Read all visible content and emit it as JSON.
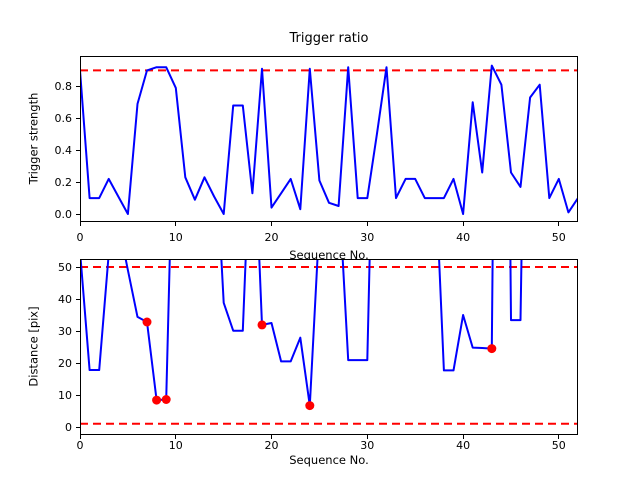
{
  "figure": {
    "background": "#ffffff",
    "line_color": "#0000ff",
    "threshold_color": "#ff0000",
    "marker_color": "#ff0000"
  },
  "chart_data": [
    {
      "type": "line",
      "title": "Trigger ratio",
      "xlabel": "Sequence No.",
      "ylabel": "Trigger strength",
      "x_note": "x = point index 0..52",
      "values": [
        0.9,
        0.1,
        0.1,
        0.22,
        0.11,
        0.0,
        0.69,
        0.9,
        0.92,
        0.92,
        0.79,
        0.23,
        0.09,
        0.23,
        0.11,
        0.0,
        0.68,
        0.68,
        0.13,
        0.91,
        0.04,
        0.13,
        0.22,
        0.03,
        0.91,
        0.21,
        0.07,
        0.05,
        0.92,
        0.1,
        0.1,
        0.5,
        0.92,
        0.1,
        0.22,
        0.22,
        0.1,
        0.1,
        0.1,
        0.22,
        0.0,
        0.7,
        0.26,
        0.93,
        0.81,
        0.26,
        0.17,
        0.73,
        0.81,
        0.1,
        0.22,
        0.01,
        0.1
      ],
      "thresholds": [
        0.9
      ],
      "markers": [],
      "xlim": [
        0,
        52
      ],
      "ylim": [
        -0.05,
        0.99
      ],
      "xticks": [
        0,
        10,
        20,
        30,
        40,
        50
      ],
      "xticklabels": [
        "0",
        "10",
        "20",
        "30",
        "40",
        "50"
      ],
      "yticks": [
        0.0,
        0.2,
        0.4,
        0.6,
        0.8
      ],
      "yticklabels": [
        "0.0",
        "0.2",
        "0.4",
        "0.6",
        "0.8"
      ],
      "grid": false,
      "legend": null
    },
    {
      "type": "line",
      "title": "",
      "xlabel": "Sequence No.",
      "ylabel": "Distance [pix]",
      "x_note": "x = point index 0..52",
      "clip_note": "values above ~52.5 run off the top of the axes; off-scale magnitudes are estimates from entry/exit slopes",
      "values": [
        55,
        17.8,
        17.8,
        54,
        64,
        49,
        34.4,
        32.8,
        8.4,
        8.6,
        127,
        80,
        80,
        80,
        95,
        38.8,
        30.1,
        30.1,
        105,
        31.9,
        32.5,
        20.5,
        20.5,
        27.9,
        6.7,
        64,
        80,
        76,
        20.9,
        20.9,
        20.9,
        150,
        80,
        80,
        80,
        80,
        80,
        87,
        17.7,
        17.7,
        35,
        24.8,
        24.7,
        24.5,
        350,
        33.4,
        33.4,
        220,
        80,
        80,
        80,
        80,
        80
      ],
      "thresholds": [
        50,
        1.0
      ],
      "markers": [
        {
          "x": 7,
          "y": 32.8
        },
        {
          "x": 8,
          "y": 8.4
        },
        {
          "x": 9,
          "y": 8.6
        },
        {
          "x": 19,
          "y": 31.9
        },
        {
          "x": 24,
          "y": 6.7
        },
        {
          "x": 43,
          "y": 24.5
        }
      ],
      "xlim": [
        0,
        52
      ],
      "ylim": [
        -2.5,
        52.5
      ],
      "xticks": [
        0,
        10,
        20,
        30,
        40,
        50
      ],
      "xticklabels": [
        "0",
        "10",
        "20",
        "30",
        "40",
        "50"
      ],
      "yticks": [
        0,
        10,
        20,
        30,
        40,
        50
      ],
      "yticklabels": [
        "0",
        "10",
        "20",
        "30",
        "40",
        "50"
      ],
      "grid": false,
      "legend": null
    }
  ]
}
